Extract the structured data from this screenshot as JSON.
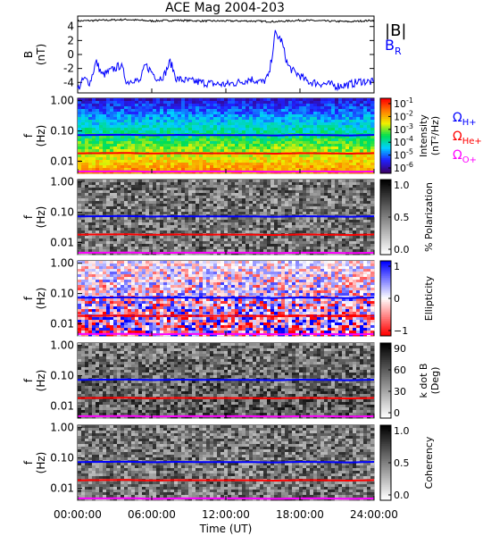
{
  "chart_data": [
    {
      "type": "line",
      "title": "ACE Mag 2004-203",
      "ylabel": "B (nT)",
      "ylabel_parts": [
        "B",
        "(nT)"
      ],
      "ylim": [
        -5.5,
        5.5
      ],
      "yticks": [
        "4",
        "2",
        "0",
        "-2",
        "-4"
      ],
      "ytick_values": [
        4,
        2,
        0,
        -2,
        -4
      ],
      "series": [
        {
          "name": "|B|",
          "color": "#000000",
          "x": [
            0,
            2,
            4,
            6,
            8,
            10,
            12,
            14,
            16,
            18,
            20,
            22,
            24
          ],
          "values": [
            4.8,
            4.9,
            5.0,
            4.8,
            4.9,
            4.8,
            4.8,
            4.8,
            4.7,
            4.9,
            4.8,
            4.7,
            4.9
          ]
        },
        {
          "name": "B_R",
          "name_main": "B",
          "name_sub": "R",
          "color": "#0000ff",
          "x": [
            0,
            0.5,
            1,
            1.5,
            2,
            2.5,
            3,
            3.5,
            4,
            4.5,
            5,
            5.5,
            6,
            6.5,
            7,
            7.5,
            8,
            9,
            10,
            11,
            12,
            13,
            14,
            15,
            15.5,
            16,
            16.5,
            17,
            17.5,
            18,
            18.5,
            19,
            20,
            21,
            22,
            23,
            24
          ],
          "values": [
            -5,
            -3.5,
            -4,
            -1,
            -3,
            -2.5,
            -2,
            -1.5,
            -4,
            -3.5,
            -4,
            -1.5,
            -2.5,
            -3.5,
            -3,
            -1,
            -3.5,
            -3.8,
            -4.0,
            -4.2,
            -4.3,
            -4.0,
            -3.5,
            -4.0,
            -3.0,
            3.0,
            2.0,
            -1.5,
            -2.5,
            -3.0,
            -3.8,
            -4.0,
            -4.2,
            -4.5,
            -4.3,
            -3.8,
            -4.0
          ]
        }
      ]
    },
    {
      "type": "heatmap",
      "ylabel": "f (Hz)",
      "ylim": [
        0.004,
        1.2
      ],
      "yscale": "log",
      "yticks": [
        "1.00",
        "0.10",
        "0.01"
      ],
      "ytick_values": [
        1,
        0.1,
        0.01
      ],
      "colorbar_label": "Intensity (nT²/Hz)",
      "colorbar_label_parts": [
        "Intensity",
        "(nT²/Hz)"
      ],
      "colorbar_ticks": [
        "10",
        "10",
        "10",
        "10",
        "10",
        "10"
      ],
      "colorbar_exponents": [
        "-1",
        "-2",
        "-3",
        "-4",
        "-5",
        "-6"
      ],
      "colorbar_exponent_values": [
        -1,
        -2,
        -3,
        -4,
        -5,
        -6
      ],
      "colormap": [
        "#3a006a",
        "#2020ff",
        "#00d0ff",
        "#00e050",
        "#f0f000",
        "#ff8000",
        "#ff0000"
      ],
      "overlay_legend": [
        {
          "name": "ΩH+",
          "main": "Ω",
          "sub": "H+",
          "color": "#0000ff"
        },
        {
          "name": "ΩHe+",
          "main": "Ω",
          "sub": "He+",
          "color": "#ff0000"
        },
        {
          "name": "ΩO+",
          "main": "Ω",
          "sub": "O+",
          "color": "#ff00ff"
        }
      ]
    },
    {
      "type": "heatmap",
      "ylabel": "f (Hz)",
      "yscale": "log",
      "yticks": [
        "1.00",
        "0.10",
        "0.01"
      ],
      "ytick_values": [
        1,
        0.1,
        0.01
      ],
      "colorbar_label": "% Polarization",
      "colorbar_ticks": [
        "1.0",
        "0.5",
        "0.0"
      ],
      "colorbar_tick_values": [
        1.0,
        0.5,
        0.0
      ],
      "colormap": [
        "#ffffff",
        "#000000"
      ]
    },
    {
      "type": "heatmap",
      "ylabel": "f (Hz)",
      "yscale": "log",
      "yticks": [
        "1.00",
        "0.10",
        "0.01"
      ],
      "ytick_values": [
        1,
        0.1,
        0.01
      ],
      "colorbar_label": "Ellipticity",
      "colorbar_ticks": [
        "1",
        "0",
        "−1"
      ],
      "colorbar_tick_values": [
        1,
        0,
        -1
      ],
      "colormap": [
        "#0000ff",
        "#ffffff",
        "#ff0000"
      ]
    },
    {
      "type": "heatmap",
      "ylabel": "f (Hz)",
      "yscale": "log",
      "yticks": [
        "1.00",
        "0.10",
        "0.01"
      ],
      "ytick_values": [
        1,
        0.1,
        0.01
      ],
      "colorbar_label": "k dot B (Deg)",
      "colorbar_label_parts": [
        "k dot B",
        "(Deg)"
      ],
      "colorbar_ticks": [
        "90",
        "60",
        "30",
        "0"
      ],
      "colorbar_tick_values": [
        90,
        60,
        30,
        0
      ],
      "colormap": [
        "#ffffff",
        "#000000"
      ]
    },
    {
      "type": "heatmap",
      "ylabel": "f (Hz)",
      "yscale": "log",
      "yticks": [
        "1.00",
        "0.10",
        "0.01"
      ],
      "ytick_values": [
        1,
        0.1,
        0.01
      ],
      "colorbar_label": "Coherency",
      "colorbar_ticks": [
        "1.0",
        "0.5",
        "0.0"
      ],
      "colorbar_tick_values": [
        1.0,
        0.5,
        0.0
      ],
      "colormap": [
        "#ffffff",
        "#000000"
      ],
      "xlabel": "Time (UT)",
      "xticks": [
        "00:00:00",
        "06:00:00",
        "12:00:00",
        "18:00:00",
        "24:00:00"
      ],
      "xtick_values": [
        0,
        6,
        12,
        18,
        24
      ]
    }
  ],
  "gyro_lines": {
    "x": [
      0,
      2,
      4,
      6,
      8,
      10,
      12,
      14,
      16,
      18,
      20,
      22,
      24
    ],
    "H+": [
      0.073,
      0.074,
      0.075,
      0.072,
      0.074,
      0.073,
      0.073,
      0.073,
      0.071,
      0.074,
      0.073,
      0.071,
      0.074
    ],
    "He+": [
      0.0183,
      0.0185,
      0.0187,
      0.018,
      0.0185,
      0.0183,
      0.0183,
      0.0183,
      0.0178,
      0.0185,
      0.0183,
      0.0178,
      0.0185
    ],
    "O+": [
      0.0046,
      0.0046,
      0.0047,
      0.0045,
      0.0046,
      0.0046,
      0.0046,
      0.0046,
      0.0045,
      0.0046,
      0.0046,
      0.0045,
      0.0046
    ]
  }
}
